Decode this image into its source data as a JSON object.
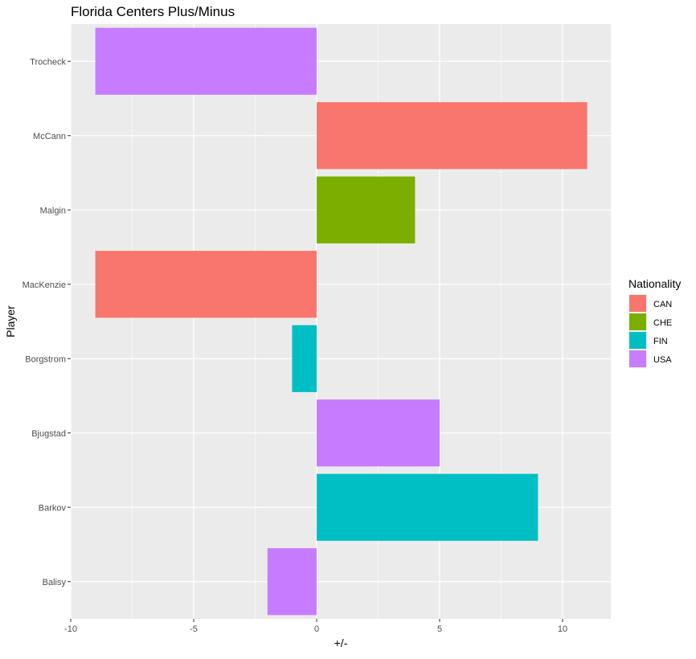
{
  "chart_data": {
    "type": "bar",
    "orientation": "horizontal",
    "title": "Florida Centers Plus/Minus",
    "xlabel": "+/-",
    "ylabel": "Player",
    "xlim": [
      -10,
      12
    ],
    "x_ticks": [
      -10,
      -5,
      0,
      5,
      10
    ],
    "x_tick_labels": [
      "-10",
      "-5",
      "0",
      "5",
      "10"
    ],
    "grid": true,
    "categories": [
      "Balisy",
      "Barkov",
      "Bjugstad",
      "Borgstrom",
      "MacKenzie",
      "Malgin",
      "McCann",
      "Trocheck"
    ],
    "values": [
      -2,
      9,
      5,
      -1,
      -9,
      4,
      11,
      -9
    ],
    "nationality": [
      "USA",
      "FIN",
      "USA",
      "FIN",
      "CAN",
      "CHE",
      "CAN",
      "USA"
    ],
    "legend": {
      "title": "Nationality",
      "position": "right",
      "entries": [
        {
          "label": "CAN",
          "color": "#F8766D"
        },
        {
          "label": "CHE",
          "color": "#7CAE00"
        },
        {
          "label": "FIN",
          "color": "#00BFC4"
        },
        {
          "label": "USA",
          "color": "#C77CFF"
        }
      ]
    },
    "panel_background": "#EBEBEB",
    "grid_color": "#FFFFFF"
  }
}
